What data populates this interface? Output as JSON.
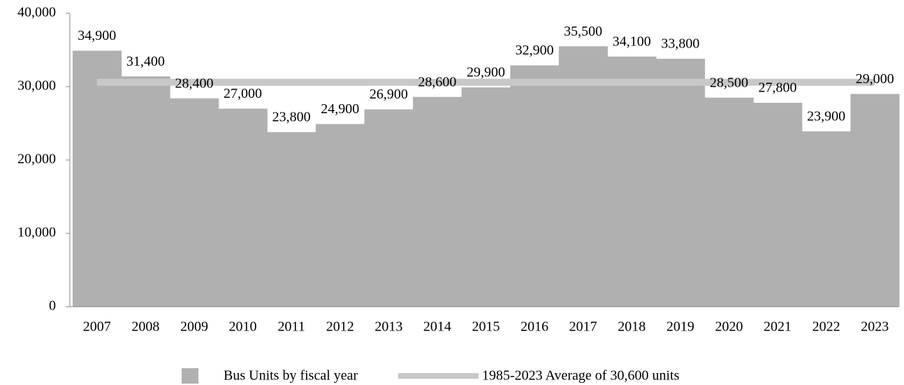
{
  "chart_data": {
    "type": "bar",
    "categories": [
      "2007",
      "2008",
      "2009",
      "2010",
      "2011",
      "2012",
      "2013",
      "2014",
      "2015",
      "2016",
      "2017",
      "2018",
      "2019",
      "2020",
      "2021",
      "2022",
      "2023"
    ],
    "series": [
      {
        "name": "Bus Units by fiscal year",
        "color": "#b0b0b0",
        "values": [
          34900,
          31400,
          28400,
          27000,
          23800,
          24900,
          26900,
          28600,
          29900,
          32900,
          35500,
          34100,
          33800,
          28500,
          27800,
          23900,
          29000
        ],
        "value_labels": [
          "34,900",
          "31,400",
          "28,400",
          "27,000",
          "23,800",
          "24,900",
          "26,900",
          "28,600",
          "29,900",
          "32,900",
          "35,500",
          "34,100",
          "33,800",
          "28,500",
          "27,800",
          "23,900",
          "29,000"
        ]
      }
    ],
    "average": {
      "name": "1985-2023 Average of 30,600 units",
      "value": 30600,
      "color": "#c8c8c8"
    },
    "ylim": [
      0,
      40000
    ],
    "yticks": [
      0,
      {
        "value": 10000,
        "label": "10,000"
      },
      {
        "value": 20000,
        "label": "20,000"
      },
      {
        "value": 30000,
        "label": "30,000"
      },
      {
        "value": 40000,
        "label": "40,000"
      }
    ]
  }
}
